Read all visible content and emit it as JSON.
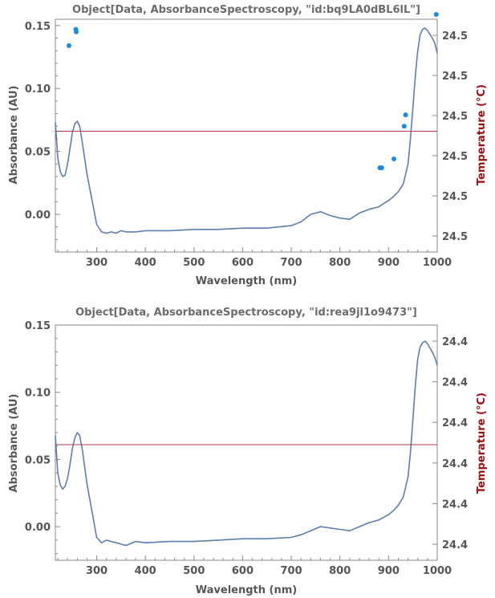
{
  "chart_data": [
    {
      "type": "line",
      "title": "Object[Data, AbsorbanceSpectroscopy, \"id:bq9LA0dBL6lL\"]",
      "xlabel": "Wavelength  (nm)",
      "ylabel": "Absorbance  (AU)",
      "y2label": "Temperature  (°C)",
      "xlim": [
        215,
        1000
      ],
      "ylim": [
        -0.03,
        0.155
      ],
      "x_ticks": [
        300,
        400,
        500,
        600,
        700,
        800,
        900,
        1000
      ],
      "x_tick_labels": [
        "300",
        "400",
        "500",
        "600",
        "700",
        "800",
        "900",
        "1000"
      ],
      "y_ticks": [
        0.0,
        0.05,
        0.1,
        0.15
      ],
      "y_tick_labels": [
        "0.00",
        "0.05",
        "0.10",
        "0.15"
      ],
      "y2_tick_labels": [
        "24.5",
        "24.5",
        "24.5",
        "24.5",
        "24.5",
        "24.5"
      ],
      "colors": {
        "spectrum": "#5a7fb0",
        "temperature": "#b03a48",
        "points": "#1a8ae0"
      },
      "series": [
        {
          "kind": "spectrum",
          "x": [
            215,
            220,
            225,
            230,
            235,
            240,
            245,
            250,
            255,
            260,
            265,
            270,
            275,
            280,
            290,
            300,
            310,
            320,
            330,
            340,
            350,
            360,
            380,
            400,
            450,
            500,
            550,
            600,
            650,
            700,
            720,
            740,
            760,
            780,
            800,
            820,
            840,
            860,
            880,
            900,
            910,
            920,
            930,
            940,
            945,
            950,
            955,
            960,
            965,
            970,
            975,
            980,
            985,
            990,
            995,
            1000
          ],
          "y": [
            0.073,
            0.045,
            0.034,
            0.03,
            0.031,
            0.04,
            0.052,
            0.065,
            0.072,
            0.074,
            0.07,
            0.058,
            0.045,
            0.032,
            0.012,
            -0.008,
            -0.014,
            -0.015,
            -0.014,
            -0.015,
            -0.013,
            -0.014,
            -0.014,
            -0.013,
            -0.013,
            -0.012,
            -0.012,
            -0.011,
            -0.011,
            -0.009,
            -0.006,
            0.0,
            0.002,
            -0.001,
            -0.003,
            -0.004,
            0.001,
            0.004,
            0.006,
            0.011,
            0.014,
            0.018,
            0.024,
            0.04,
            0.06,
            0.085,
            0.11,
            0.13,
            0.143,
            0.147,
            0.148,
            0.146,
            0.143,
            0.14,
            0.136,
            0.128
          ]
        },
        {
          "kind": "temperature",
          "x": [
            215,
            1000
          ],
          "y": [
            0.066,
            0.066
          ]
        },
        {
          "kind": "points",
          "x": [
            243,
            257,
            258,
            882,
            886,
            911,
            932,
            935,
            998
          ],
          "y": [
            0.134,
            0.147,
            0.145,
            0.037,
            0.037,
            0.044,
            0.07,
            0.079,
            0.161
          ]
        }
      ]
    },
    {
      "type": "line",
      "title": "Object[Data, AbsorbanceSpectroscopy, \"id:rea9jl1o9473\"]",
      "xlabel": "Wavelength  (nm)",
      "ylabel": "Absorbance  (AU)",
      "y2label": "Temperature  (°C)",
      "xlim": [
        215,
        1000
      ],
      "ylim": [
        -0.025,
        0.15
      ],
      "x_ticks": [
        300,
        400,
        500,
        600,
        700,
        800,
        900,
        1000
      ],
      "x_tick_labels": [
        "300",
        "400",
        "500",
        "600",
        "700",
        "800",
        "900",
        "1000"
      ],
      "y_ticks": [
        0.0,
        0.05,
        0.1,
        0.15
      ],
      "y_tick_labels": [
        "0.00",
        "0.05",
        "0.10",
        "0.15"
      ],
      "y2_tick_labels": [
        "24.4",
        "24.4",
        "24.4",
        "24.4",
        "24.4",
        "24.4"
      ],
      "colors": {
        "spectrum": "#5a7fb0",
        "temperature": "#b03a48",
        "points": "#1a8ae0"
      },
      "series": [
        {
          "kind": "spectrum",
          "x": [
            215,
            220,
            225,
            230,
            235,
            240,
            245,
            250,
            255,
            260,
            265,
            270,
            275,
            280,
            290,
            300,
            310,
            320,
            330,
            340,
            350,
            360,
            380,
            400,
            450,
            500,
            550,
            600,
            650,
            700,
            720,
            740,
            760,
            780,
            800,
            820,
            840,
            860,
            880,
            900,
            910,
            920,
            930,
            940,
            945,
            950,
            955,
            960,
            965,
            970,
            975,
            980,
            985,
            990,
            995,
            1000
          ],
          "y": [
            0.068,
            0.04,
            0.031,
            0.028,
            0.03,
            0.036,
            0.046,
            0.058,
            0.066,
            0.07,
            0.068,
            0.058,
            0.045,
            0.032,
            0.012,
            -0.008,
            -0.012,
            -0.01,
            -0.011,
            -0.012,
            -0.013,
            -0.014,
            -0.011,
            -0.012,
            -0.011,
            -0.011,
            -0.01,
            -0.009,
            -0.009,
            -0.008,
            -0.006,
            -0.003,
            0.0,
            -0.001,
            -0.002,
            -0.003,
            0.0,
            0.003,
            0.005,
            0.009,
            0.012,
            0.016,
            0.022,
            0.037,
            0.055,
            0.08,
            0.105,
            0.125,
            0.134,
            0.137,
            0.138,
            0.136,
            0.133,
            0.13,
            0.126,
            0.12
          ]
        },
        {
          "kind": "temperature",
          "x": [
            215,
            1000
          ],
          "y": [
            0.061,
            0.061
          ]
        }
      ]
    }
  ]
}
